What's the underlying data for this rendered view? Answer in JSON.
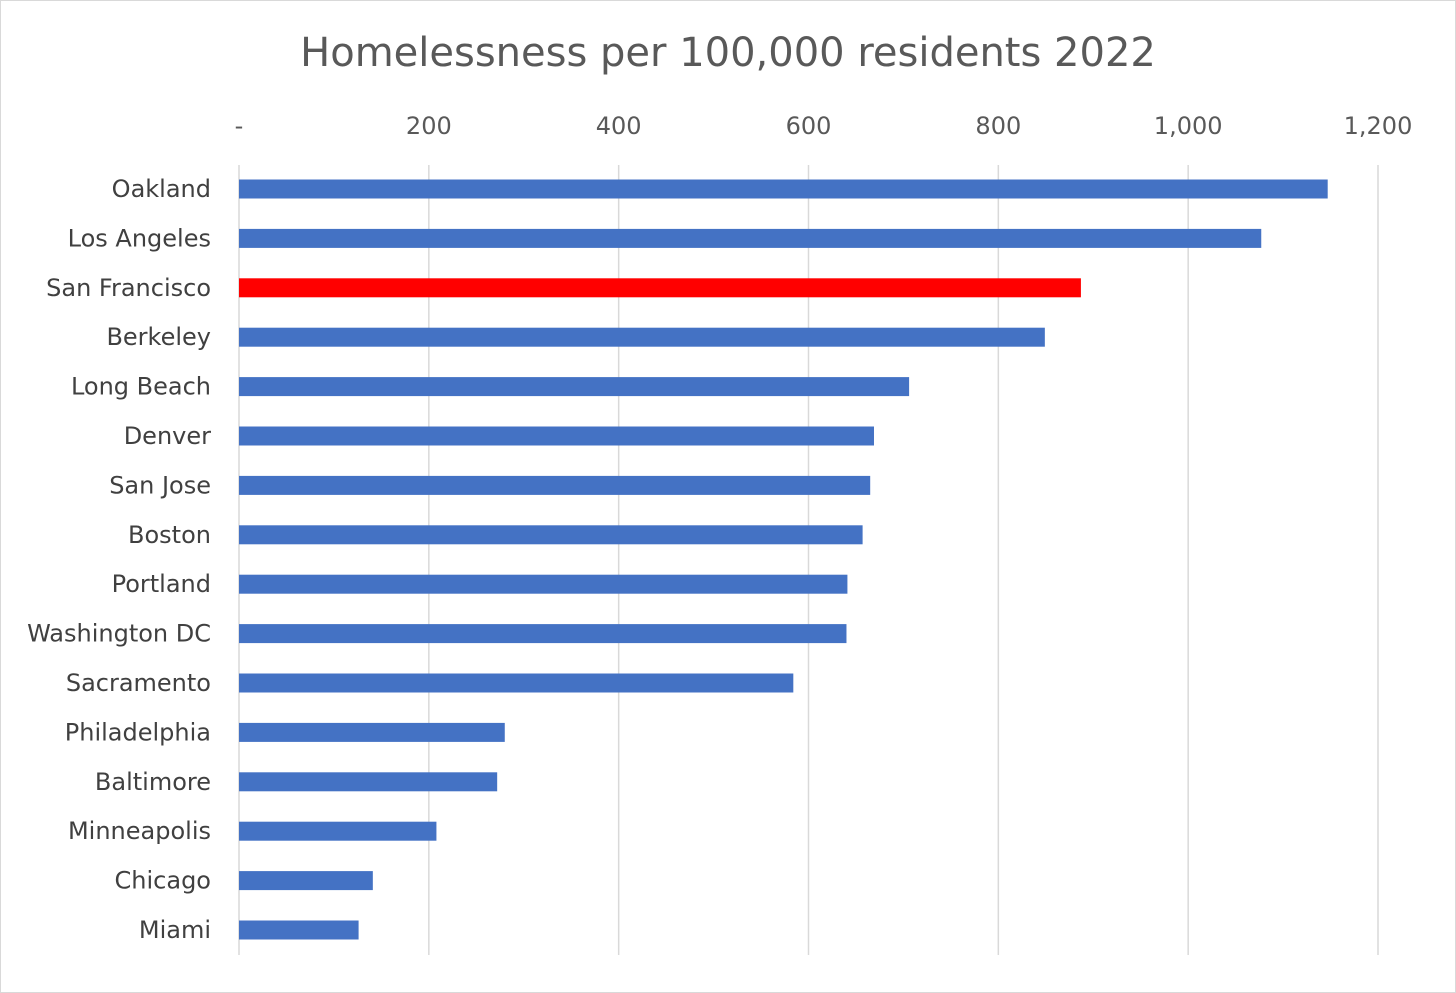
{
  "chart_data": {
    "type": "bar",
    "orientation": "horizontal",
    "title": "Homelessness per 100,000 residents 2022",
    "xlabel": "",
    "ylabel": "",
    "xlim": [
      0,
      1200
    ],
    "x_ticks": [
      0,
      200,
      400,
      600,
      800,
      1000,
      1200
    ],
    "x_tick_labels": [
      "-",
      "200",
      "400",
      "600",
      "800",
      "1,000",
      "1,200"
    ],
    "x_axis_position": "top",
    "grid": "vertical",
    "legend": "none",
    "categories": [
      "Oakland",
      "Los Angeles",
      "San Francisco",
      "Berkeley",
      "Long Beach",
      "Denver",
      "San Jose",
      "Boston",
      "Portland",
      "Washington DC",
      "Sacramento",
      "Philadelphia",
      "Baltimore",
      "Minneapolis",
      "Chicago",
      "Miami"
    ],
    "values": [
      1147,
      1077,
      887,
      849,
      706,
      669,
      665,
      657,
      641,
      640,
      584,
      280,
      272,
      208,
      141,
      126
    ],
    "highlight_category": "San Francisco",
    "colors": {
      "bar": "#4472c4",
      "highlight": "#ff0000",
      "grid": "#d9d9d9",
      "text": "#595959"
    }
  }
}
